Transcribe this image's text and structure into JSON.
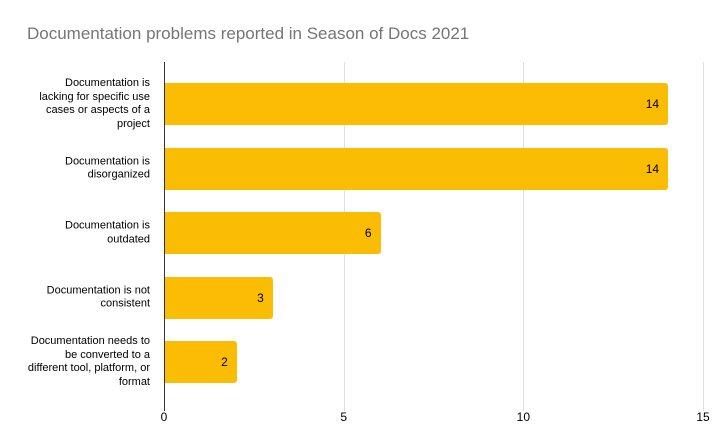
{
  "chart_data": {
    "type": "bar",
    "orientation": "horizontal",
    "title": "Documentation problems reported in Season of Docs 2021",
    "categories": [
      "Documentation is lacking for specific use cases or aspects of a project",
      "Documentation is disorganized",
      "Documentation is outdated",
      "Documentation is not consistent",
      "Documentation needs to be converted to a different tool, platform, or format"
    ],
    "category_label_lines": [
      [
        "Documentation is",
        "lacking for specific use",
        "cases or aspects of a",
        "project"
      ],
      [
        "Documentation is",
        "disorganized"
      ],
      [
        "Documentation is",
        "outdated"
      ],
      [
        "Documentation is not",
        "consistent"
      ],
      [
        "Documentation needs to",
        "be converted to a",
        "different tool, platform, or",
        "format"
      ]
    ],
    "values": [
      14,
      14,
      6,
      3,
      2
    ],
    "xlabel": "",
    "ylabel": "",
    "xlim": [
      0,
      15
    ],
    "x_ticks": [
      0,
      5,
      10,
      15
    ],
    "grid": true,
    "legend": "none",
    "colors": {
      "bar": "#FBBC04",
      "title": "#757575",
      "gridline": "#E0E0E0",
      "baseline": "#333333",
      "label": "#000000",
      "value_label": "#000000",
      "tick_label": "#000000",
      "background": "#FFFFFF"
    }
  }
}
